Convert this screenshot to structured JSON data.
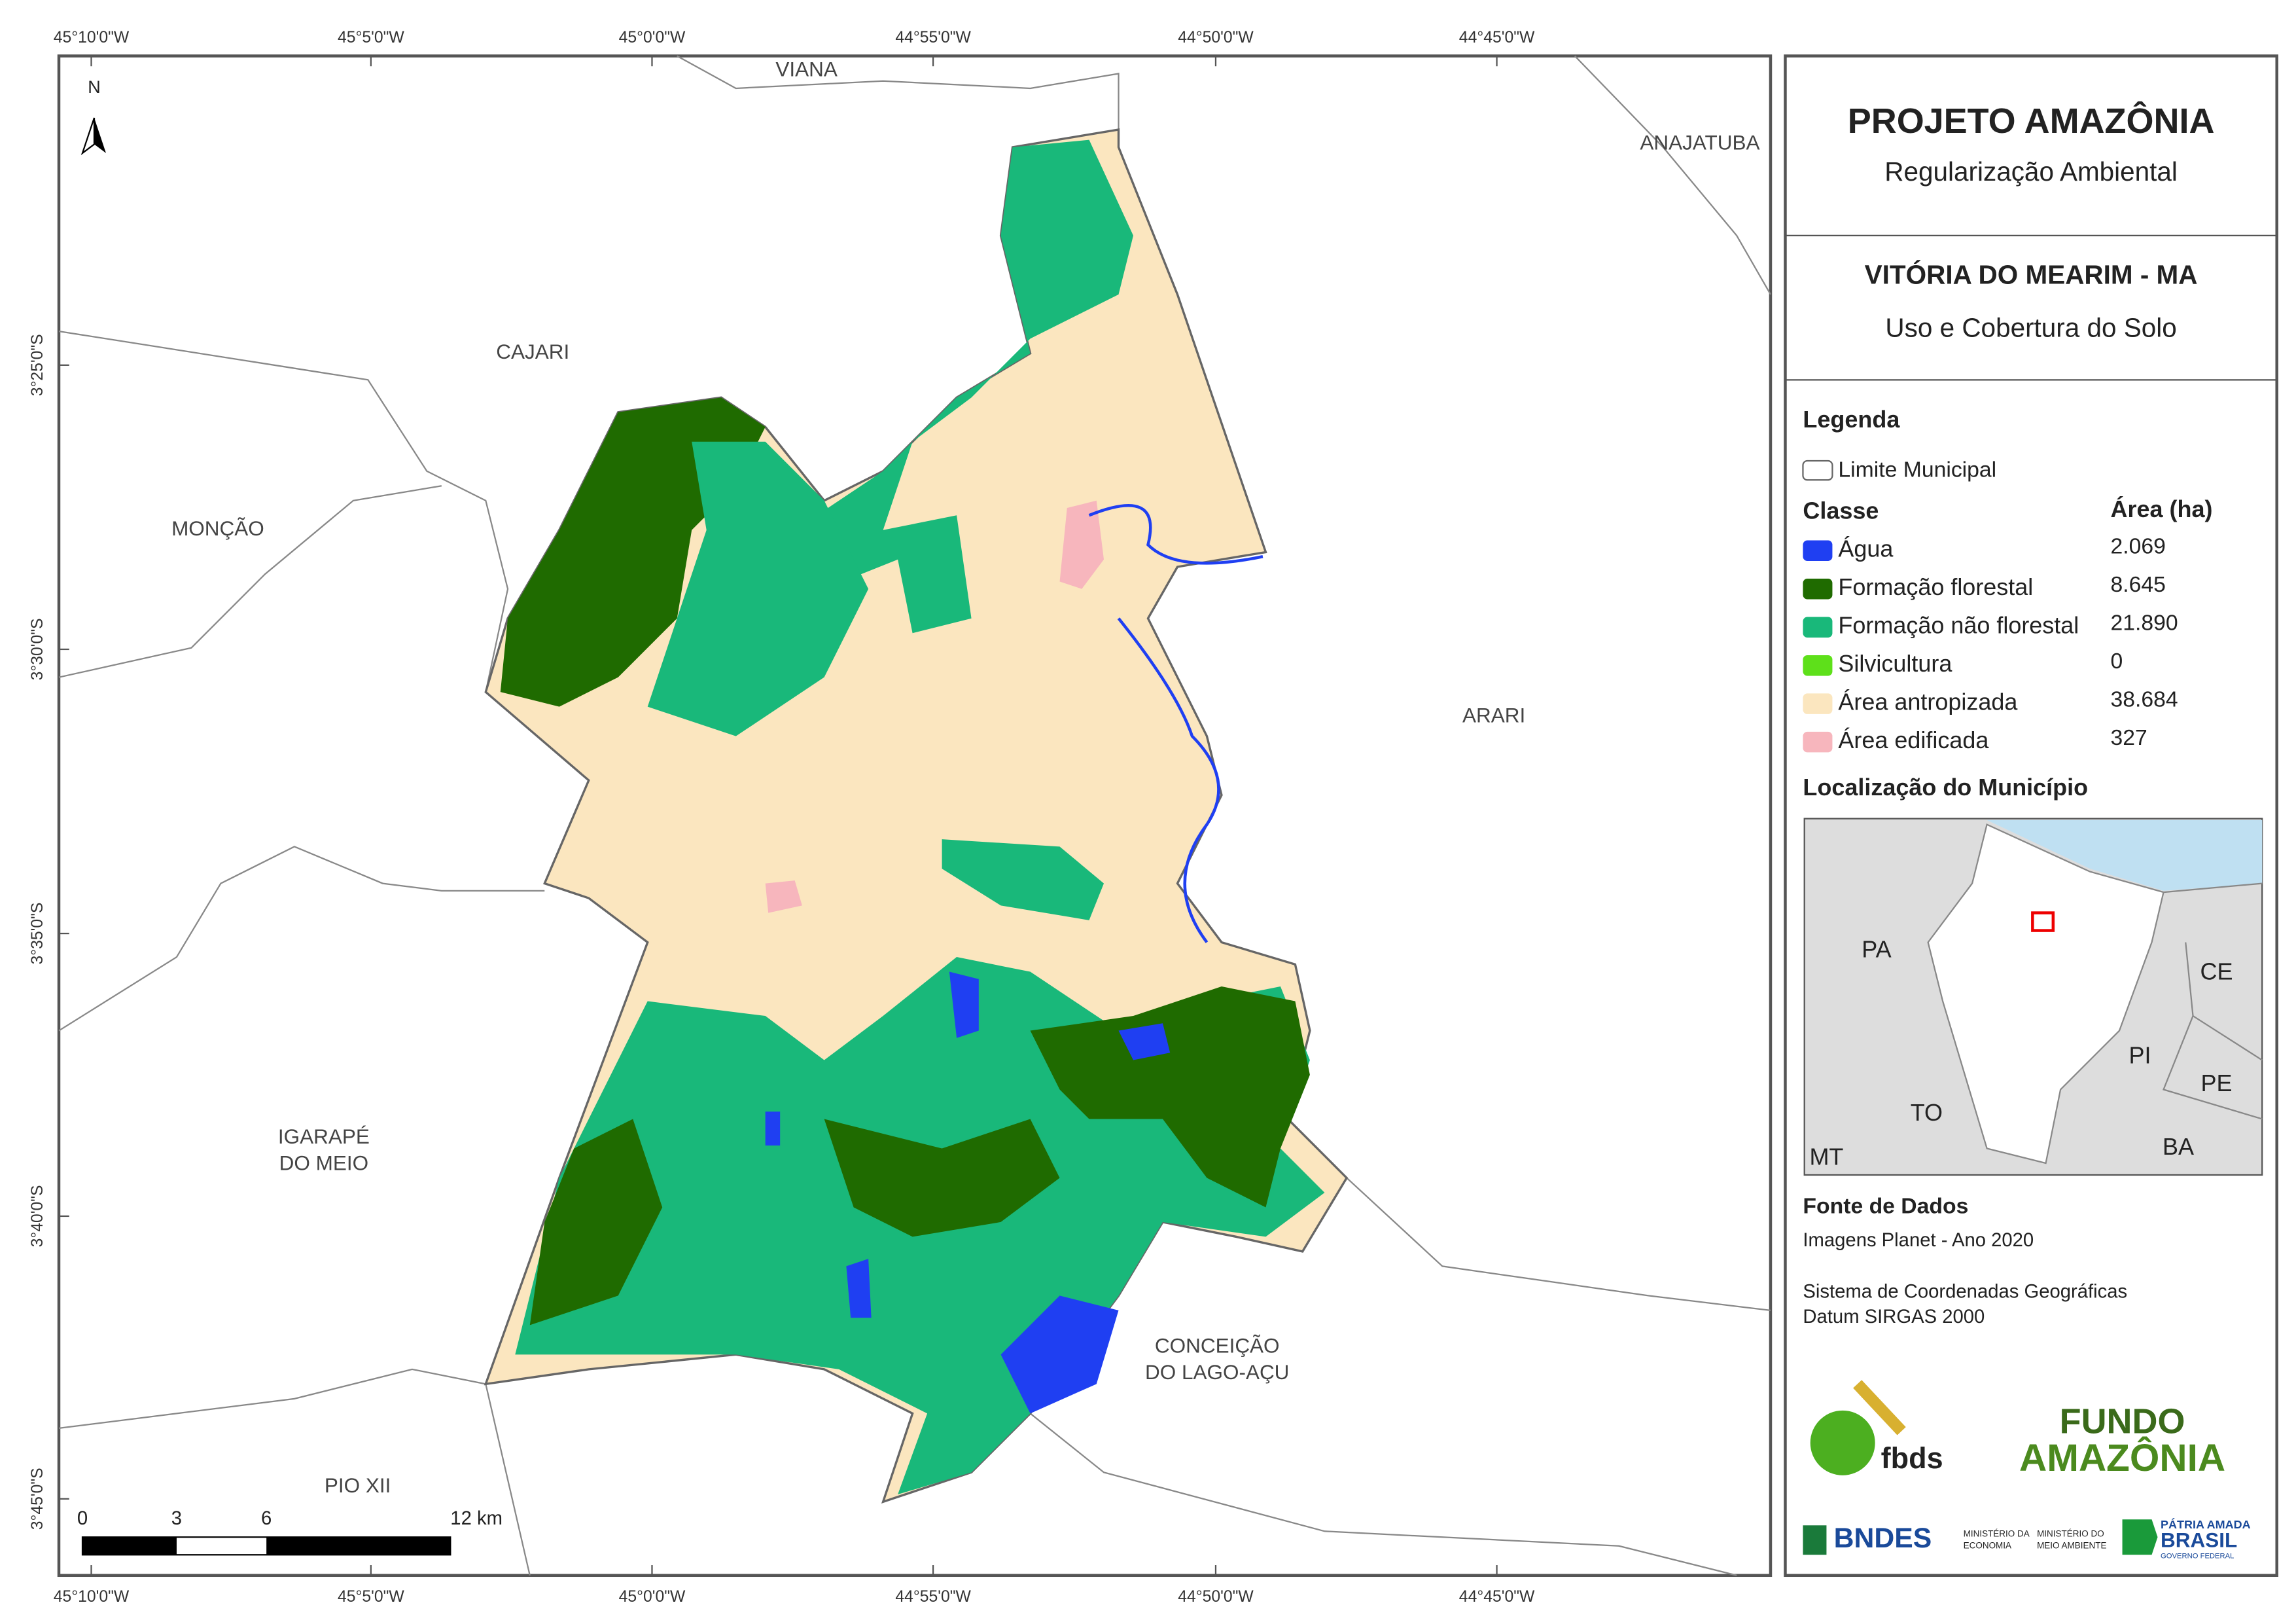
{
  "coordinates": {
    "longitude": [
      "45°10'0\"W",
      "45°5'0\"W",
      "45°0'0\"W",
      "44°55'0\"W",
      "44°50'0\"W",
      "44°45'0\"W"
    ],
    "latitude": [
      "3°25'0\"S",
      "3°30'0\"S",
      "3°35'0\"S",
      "3°40'0\"S",
      "3°45'0\"S"
    ]
  },
  "map": {
    "north": "N",
    "places": [
      [
        "VIANA"
      ],
      [
        "ANAJATUBA"
      ],
      [
        "CAJARI"
      ],
      [
        "MONÇÃO"
      ],
      [
        "ARARI"
      ],
      [
        "IGARAPÉ",
        "DO MEIO"
      ],
      [
        "CONCEIÇÃO",
        "DO LAGO-AÇU"
      ],
      [
        "PIO XII"
      ]
    ],
    "scale_bar": [
      "0",
      "3",
      "6",
      "12 km"
    ]
  },
  "panel": {
    "title": "PROJETO AMAZÔNIA",
    "subtitle": "Regularização Ambiental",
    "municipality": "VITÓRIA DO MEARIM - MA",
    "theme": "Uso e Cobertura do Solo",
    "legend": {
      "heading": "Legenda",
      "boundary": "Limite Municipal",
      "class_header": "Classe",
      "area_header": "Área (ha)",
      "classes": [
        {
          "name": "Água",
          "color": "#1f3ff2",
          "area": "2.069"
        },
        {
          "name": "Formação florestal",
          "color": "#1f6b00",
          "area": "8.645"
        },
        {
          "name": "Formação não florestal",
          "color": "#19b87a",
          "area": "21.890"
        },
        {
          "name": "Silvicultura",
          "color": "#5ee01a",
          "area": "0"
        },
        {
          "name": "Área antropizada",
          "color": "#fbe6bf",
          "area": "38.684"
        },
        {
          "name": "Área edificada",
          "color": "#f7b6bd",
          "area": "327"
        }
      ]
    },
    "location": {
      "heading": "Localização do Município",
      "labels": [
        "PA",
        "CE",
        "PI",
        "PE",
        "TO",
        "BA",
        "MT"
      ]
    },
    "sources": {
      "heading": "Fonte de Dados",
      "lines": [
        "Imagens Planet - Ano 2020",
        "Sistema de Coordenadas Geográficas",
        "Datum SIRGAS 2000"
      ]
    },
    "logos": {
      "fbds": "fbds",
      "fundo": [
        "FUNDO",
        "AMAZÔNIA"
      ],
      "bndes": "BNDES",
      "ministries": [
        [
          "MINISTÉRIO DA",
          "ECONOMIA"
        ],
        [
          "MINISTÉRIO DO",
          "MEIO AMBIENTE"
        ]
      ],
      "brasil": [
        "PÁTRIA AMADA",
        "BRASIL",
        "GOVERNO FEDERAL"
      ]
    }
  }
}
